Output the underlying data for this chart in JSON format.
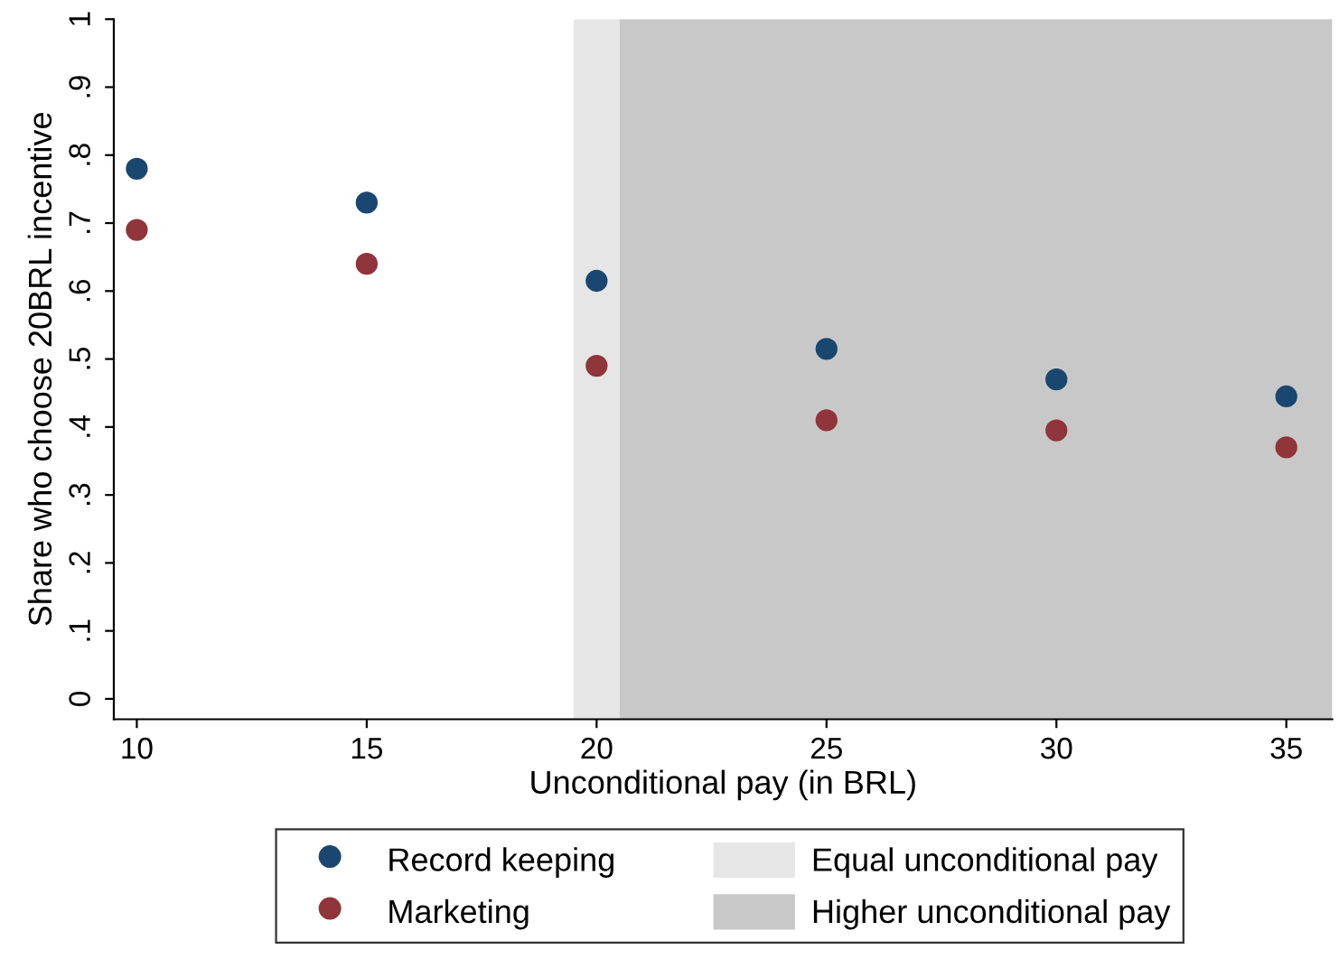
{
  "chart_data": {
    "type": "scatter",
    "xlabel": "Unconditional pay (in BRL)",
    "ylabel": "Share who choose 20BRL incentive",
    "x": [
      10,
      15,
      20,
      25,
      30,
      35
    ],
    "series": [
      {
        "name": "Record keeping",
        "color": "#1a476f",
        "values": [
          0.78,
          0.73,
          0.615,
          0.515,
          0.47,
          0.445
        ]
      },
      {
        "name": "Marketing",
        "color": "#90353b",
        "values": [
          0.69,
          0.64,
          0.49,
          0.41,
          0.395,
          0.37
        ]
      }
    ],
    "bands": [
      {
        "axis": "x",
        "from": 19.5,
        "to": 20.5,
        "label": "Equal unconditional pay",
        "color": "#e6e6e6"
      },
      {
        "axis": "x",
        "from": 20.5,
        "to": 36,
        "label": "Higher unconditional pay",
        "color": "#c8c8c8"
      }
    ],
    "xlim": [
      9.5,
      36
    ],
    "xticks": [
      10,
      15,
      20,
      25,
      30,
      35
    ],
    "ylim": [
      -0.03,
      1.0
    ],
    "yticks": [
      {
        "value": 0,
        "label": "0"
      },
      {
        "value": 0.1,
        "label": ".1"
      },
      {
        "value": 0.2,
        "label": ".2"
      },
      {
        "value": 0.3,
        "label": ".3"
      },
      {
        "value": 0.4,
        "label": ".4"
      },
      {
        "value": 0.5,
        "label": ".5"
      },
      {
        "value": 0.6,
        "label": ".6"
      },
      {
        "value": 0.7,
        "label": ".7"
      },
      {
        "value": 0.8,
        "label": ".8"
      },
      {
        "value": 0.9,
        "label": ".9"
      },
      {
        "value": 1,
        "label": "1"
      }
    ],
    "marker": "circle",
    "grid": false,
    "legend": "bottom"
  }
}
